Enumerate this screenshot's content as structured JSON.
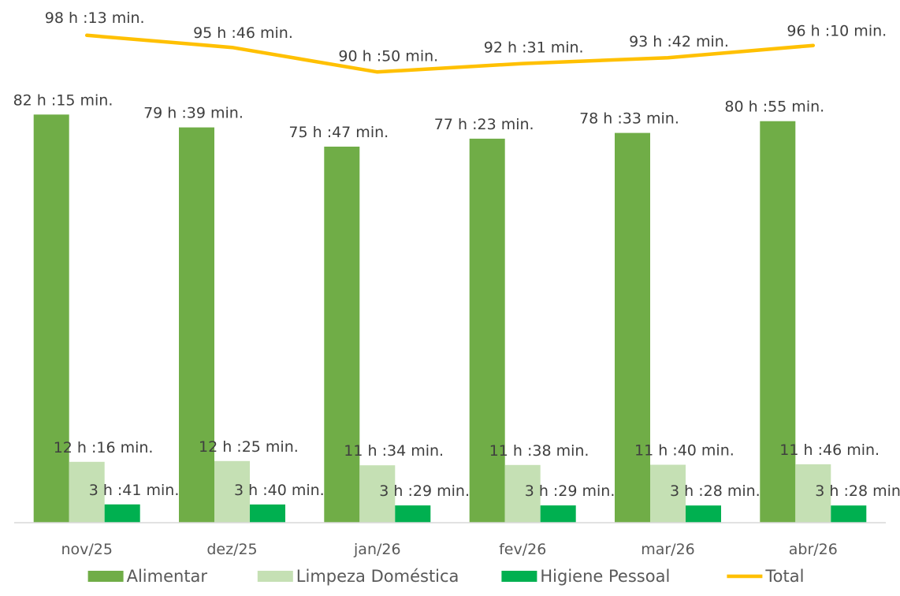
{
  "chart_data": {
    "type": "bar",
    "title": "",
    "xlabel": "",
    "ylabel": "",
    "categories": [
      "nov/25",
      "dez/25",
      "jan/26",
      "fev/26",
      "mar/26",
      "abr/26"
    ],
    "series": [
      {
        "name": "Alimentar",
        "kind": "bar",
        "color": "#70ad47",
        "values": [
          82.25,
          79.65,
          75.78,
          77.38,
          78.55,
          80.92
        ],
        "labels": [
          "82 h :15 min.",
          "79 h :39 min.",
          "75 h :47 min.",
          "77 h :23 min.",
          "78 h :33 min.",
          "80 h :55 min."
        ]
      },
      {
        "name": "Limpeza Doméstica",
        "kind": "bar",
        "color": "#c5e0b4",
        "values": [
          12.27,
          12.42,
          11.57,
          11.63,
          11.67,
          11.77
        ],
        "labels": [
          "12 h :16 min.",
          "12 h :25 min.",
          "11 h :34 min.",
          "11 h :38 min.",
          "11 h :40 min.",
          "11 h :46 min."
        ]
      },
      {
        "name": "Higiene Pessoal",
        "kind": "bar",
        "color": "#00b050",
        "values": [
          3.68,
          3.67,
          3.48,
          3.48,
          3.47,
          3.47
        ],
        "labels": [
          "3 h :41 min.",
          "3 h :40 min.",
          "3 h :29 min.",
          "3 h :29 min.",
          "3 h :28 min.",
          "3 h :28 min."
        ]
      },
      {
        "name": "Total",
        "kind": "line",
        "color": "#ffc000",
        "values": [
          98.22,
          95.77,
          90.83,
          92.52,
          93.7,
          96.17
        ],
        "labels": [
          "98 h :13 min.",
          "95 h :46 min.",
          "90 h :50 min.",
          "92 h :31 min.",
          "93 h :42 min.",
          "96 h :10 min."
        ]
      }
    ],
    "ylim": [
      0,
      98.5
    ],
    "grid": false,
    "legend_position": "bottom"
  }
}
